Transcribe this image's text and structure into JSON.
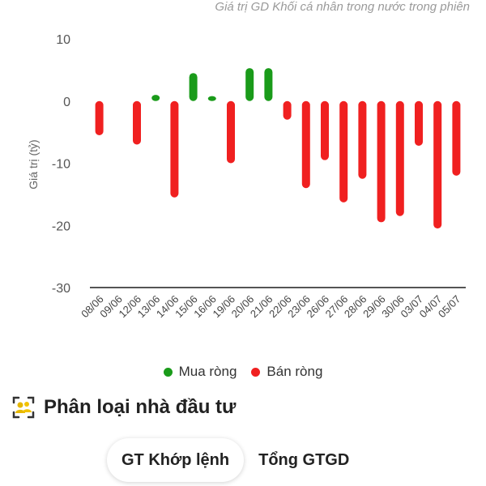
{
  "chart_data": {
    "type": "bar",
    "title": "Giá trị GD Khối cá nhân trong nước trong phiên",
    "ylabel": "Giá trị (tỷ)",
    "xlabel": "",
    "ylim": [
      -30,
      10
    ],
    "yticks": [
      "10",
      "0",
      "-10",
      "-20",
      "-30"
    ],
    "categories": [
      "08/06",
      "09/06",
      "12/06",
      "13/06",
      "14/06",
      "15/06",
      "16/06",
      "19/06",
      "20/06",
      "21/06",
      "22/06",
      "23/06",
      "26/06",
      "27/06",
      "28/06",
      "29/06",
      "30/06",
      "03/07",
      "04/07",
      "05/07"
    ],
    "values": [
      -5.5,
      0,
      -7,
      1,
      -15.5,
      4.5,
      0.8,
      -10,
      5.3,
      5.3,
      -3,
      -14,
      -9.5,
      -16.3,
      -12.5,
      -19.5,
      -18.5,
      -7.2,
      -20.5,
      -12
    ],
    "colors": {
      "positive": "#1a9b1a",
      "negative": "#f02020",
      "axis": "#555555"
    },
    "legend": {
      "position": "bottom",
      "items": [
        {
          "label": "Mua ròng",
          "color": "#1a9b1a"
        },
        {
          "label": "Bán ròng",
          "color": "#f02020"
        }
      ]
    },
    "grid": false
  },
  "section": {
    "title": "Phân loại nhà đầu tư",
    "icon": "investors-icon",
    "icon_color": "#e6b800"
  },
  "tabs": [
    {
      "label": "GT Khớp lệnh",
      "active": true
    },
    {
      "label": "Tổng GTGD",
      "active": false
    }
  ]
}
